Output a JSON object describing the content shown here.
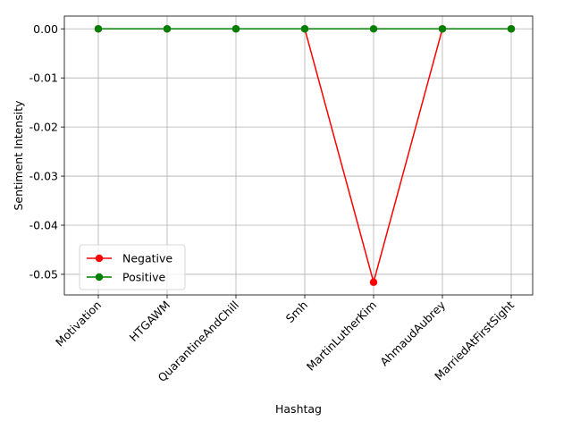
{
  "chart_data": {
    "type": "line",
    "title": "",
    "xlabel": "Hashtag",
    "ylabel": "Sentiment Intensity",
    "categories": [
      "Motivation",
      "HTGAWM",
      "QuarantineAndChill",
      "Smh",
      "MartinLutherKim",
      "AhmaudAubrey",
      "MarriedAtFirstSight"
    ],
    "series": [
      {
        "name": "Negative",
        "color": "#ff0000",
        "values": [
          0,
          0,
          0,
          0,
          -0.0516,
          0,
          0
        ]
      },
      {
        "name": "Positive",
        "color": "#008000",
        "values": [
          0,
          0,
          0,
          0,
          0,
          0,
          0
        ]
      }
    ],
    "yticks": [
      "0.00",
      "-0.01",
      "-0.02",
      "-0.03",
      "-0.04",
      "-0.05"
    ],
    "ylim": [
      -0.0542,
      0.0026
    ],
    "grid": true,
    "legend": "lower-left",
    "marker": "circle"
  }
}
